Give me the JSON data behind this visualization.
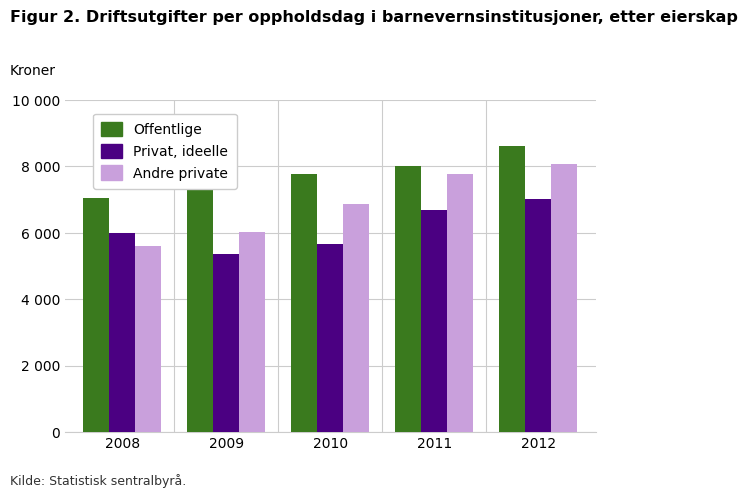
{
  "title": "Figur 2. Driftsutgifter per oppholdsdag i barnevernsinstitusjoner, etter eierskap",
  "ylabel": "Kroner",
  "source": "Kilde: Statistisk sentralbyrå.",
  "years": [
    2008,
    2009,
    2010,
    2011,
    2012
  ],
  "series": {
    "Offentlige": [
      7050,
      7830,
      7780,
      8000,
      8620
    ],
    "Privat, ideelle": [
      5980,
      5370,
      5660,
      6680,
      7030
    ],
    "Andre private": [
      5590,
      6010,
      6870,
      7770,
      8080
    ]
  },
  "colors": {
    "Offentlige": "#3a7a1e",
    "Privat, ideelle": "#4b0082",
    "Andre private": "#c9a0dc"
  },
  "ylim": [
    0,
    10000
  ],
  "yticks": [
    0,
    2000,
    4000,
    6000,
    8000,
    10000
  ],
  "ytick_labels": [
    "0",
    "2 000",
    "4 000",
    "6 000",
    "8 000",
    "10 000"
  ],
  "background_color": "#ffffff",
  "grid_color": "#cccccc",
  "bar_width": 0.25,
  "title_fontsize": 11.5,
  "axis_fontsize": 10,
  "legend_fontsize": 10,
  "source_fontsize": 9
}
